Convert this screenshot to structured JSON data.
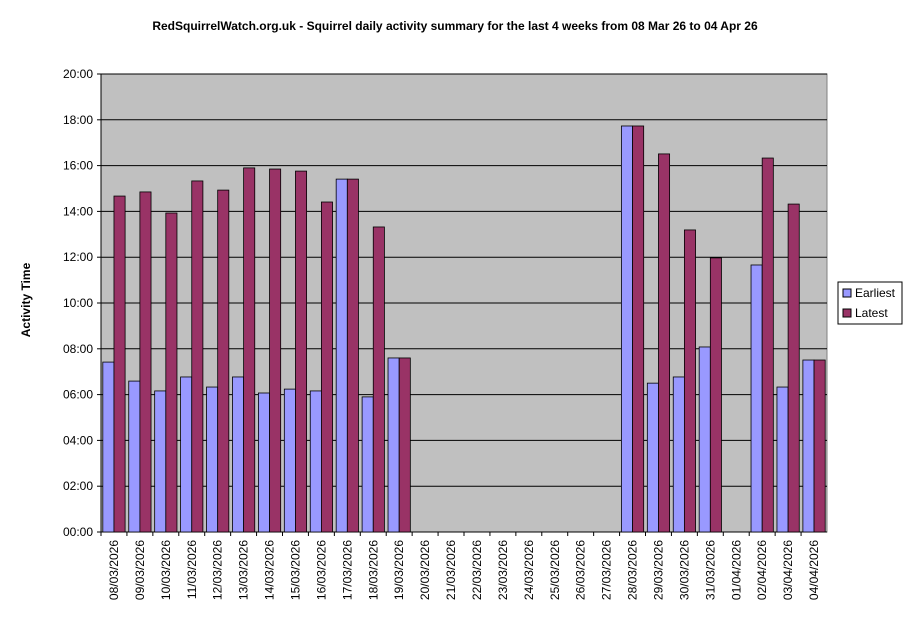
{
  "chart_data": {
    "type": "bar",
    "title": "RedSquirrelWatch.org.uk - Squirrel daily activity summary for the last 4 weeks from 08 Mar 26 to 04 Apr 26",
    "y_label": "Activity Time",
    "categories": [
      "08/03/2026",
      "09/03/2026",
      "10/03/2026",
      "11/03/2026",
      "12/03/2026",
      "13/03/2026",
      "14/03/2026",
      "15/03/2026",
      "16/03/2026",
      "17/03/2026",
      "18/03/2026",
      "19/03/2026",
      "20/03/2026",
      "21/03/2026",
      "22/03/2026",
      "23/03/2026",
      "24/03/2026",
      "25/03/2026",
      "26/03/2026",
      "27/03/2026",
      "28/03/2026",
      "29/03/2026",
      "30/03/2026",
      "31/03/2026",
      "01/04/2026",
      "02/04/2026",
      "03/04/2026",
      "04/04/2026"
    ],
    "series": [
      {
        "name": "Earliest",
        "color": "#9999ff",
        "values": [
          7.42,
          6.59,
          6.16,
          6.77,
          6.33,
          6.77,
          6.07,
          6.24,
          6.16,
          15.41,
          5.9,
          7.6,
          null,
          null,
          null,
          null,
          null,
          null,
          null,
          null,
          17.73,
          6.5,
          6.77,
          8.08,
          null,
          11.66,
          6.33,
          7.51
        ]
      },
      {
        "name": "Latest",
        "color": "#993366",
        "values": [
          14.67,
          14.85,
          13.93,
          15.33,
          14.93,
          15.9,
          15.85,
          15.76,
          14.41,
          15.41,
          13.32,
          7.6,
          null,
          null,
          null,
          null,
          null,
          null,
          null,
          null,
          17.73,
          16.51,
          13.19,
          11.97,
          null,
          16.33,
          14.32,
          7.51
        ]
      }
    ],
    "ylim": [
      0,
      20
    ],
    "yticks": [
      {
        "value": 0,
        "label": "00:00"
      },
      {
        "value": 2,
        "label": "02:00"
      },
      {
        "value": 4,
        "label": "04:00"
      },
      {
        "value": 6,
        "label": "06:00"
      },
      {
        "value": 8,
        "label": "08:00"
      },
      {
        "value": 10,
        "label": "10:00"
      },
      {
        "value": 12,
        "label": "12:00"
      },
      {
        "value": 14,
        "label": "14:00"
      },
      {
        "value": 16,
        "label": "16:00"
      },
      {
        "value": 18,
        "label": "18:00"
      },
      {
        "value": 20,
        "label": "20:00"
      }
    ],
    "grid": true,
    "legend": "right"
  }
}
